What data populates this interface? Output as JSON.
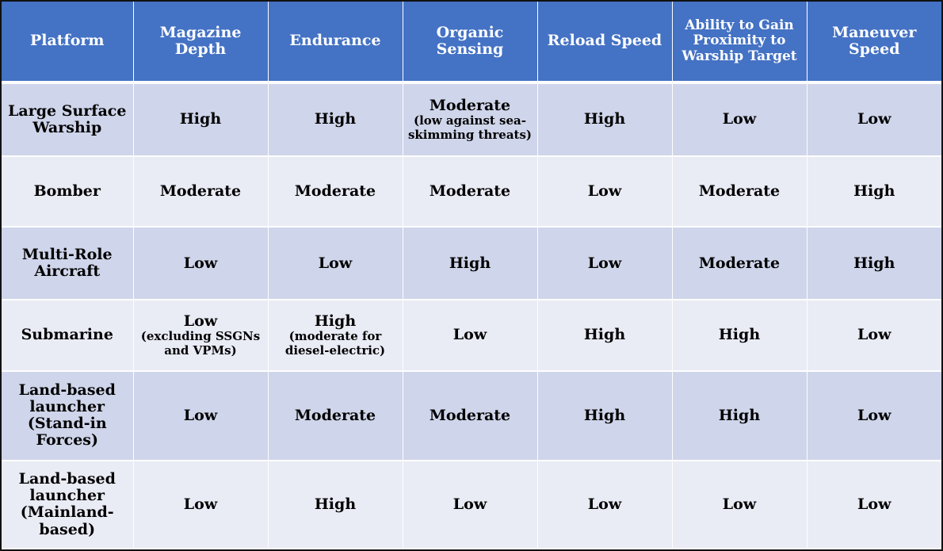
{
  "table": {
    "headers": [
      "Platform",
      "Magazine Depth",
      "Endurance",
      "Organic Sensing",
      "Reload Speed",
      "Ability to Gain Proximity to Warship Target",
      "Maneuver Speed"
    ],
    "rows": [
      {
        "platform": "Large Surface Warship",
        "magazine_depth": "High",
        "endurance": "High",
        "organic_sensing": "Moderate",
        "organic_sensing_note": "(low against sea-skimming threats)",
        "reload_speed": "High",
        "proximity": "Low",
        "maneuver_speed": "Low"
      },
      {
        "platform": "Bomber",
        "magazine_depth": "Moderate",
        "endurance": "Moderate",
        "organic_sensing": "Moderate",
        "reload_speed": "Low",
        "proximity": "Moderate",
        "maneuver_speed": "High"
      },
      {
        "platform": "Multi-Role Aircraft",
        "magazine_depth": "Low",
        "endurance": "Low",
        "organic_sensing": "High",
        "reload_speed": "Low",
        "proximity": "Moderate",
        "maneuver_speed": "High"
      },
      {
        "platform": "Submarine",
        "magazine_depth": "Low",
        "magazine_depth_note": "(excluding SSGNs and VPMs)",
        "endurance": "High",
        "endurance_note": "(moderate for diesel-electric)",
        "organic_sensing": "Low",
        "reload_speed": "High",
        "proximity": "High",
        "maneuver_speed": "Low"
      },
      {
        "platform": "Land-based launcher",
        "platform_note": "(Stand-in Forces)",
        "magazine_depth": "Low",
        "endurance": "Moderate",
        "organic_sensing": "Moderate",
        "reload_speed": "High",
        "proximity": "High",
        "maneuver_speed": "Low"
      },
      {
        "platform": "Land-based launcher",
        "platform_note": "(Mainland-based)",
        "magazine_depth": "Low",
        "endurance": "High",
        "organic_sensing": "Low",
        "reload_speed": "Low",
        "proximity": "Low",
        "maneuver_speed": "Low"
      }
    ]
  },
  "colors": {
    "header_bg": "#4472c4",
    "row_dark": "#cfd5ea",
    "row_light": "#e9ebf5",
    "border": "#111111"
  }
}
